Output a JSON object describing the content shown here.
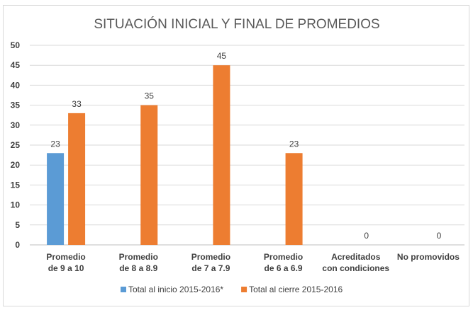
{
  "chart_data": {
    "type": "bar",
    "title": "SITUACIÓN INICIAL Y FINAL DE PROMEDIOS",
    "xlabel": "",
    "ylabel": "",
    "ylim": [
      0,
      50
    ],
    "yticks": [
      0,
      5,
      10,
      15,
      20,
      25,
      30,
      35,
      40,
      45,
      50
    ],
    "grid": true,
    "legend_position": "bottom",
    "categories": [
      [
        "Promedio",
        "de 9 a 10"
      ],
      [
        "Promedio",
        "de 8 a 8.9"
      ],
      [
        "Promedio",
        "de 7 a 7.9"
      ],
      [
        "Promedio",
        "de 6 a 6.9"
      ],
      [
        "Acreditados",
        "con condiciones"
      ],
      [
        "No promovidos"
      ]
    ],
    "series": [
      {
        "name": "Total  al inicio 2015-2016*",
        "color": "#5b9bd5",
        "values": [
          23,
          null,
          null,
          null,
          null,
          null
        ]
      },
      {
        "name": "Total  al cierre 2015-2016",
        "color": "#ed7d31",
        "values": [
          33,
          35,
          45,
          23,
          0,
          0
        ]
      }
    ]
  }
}
